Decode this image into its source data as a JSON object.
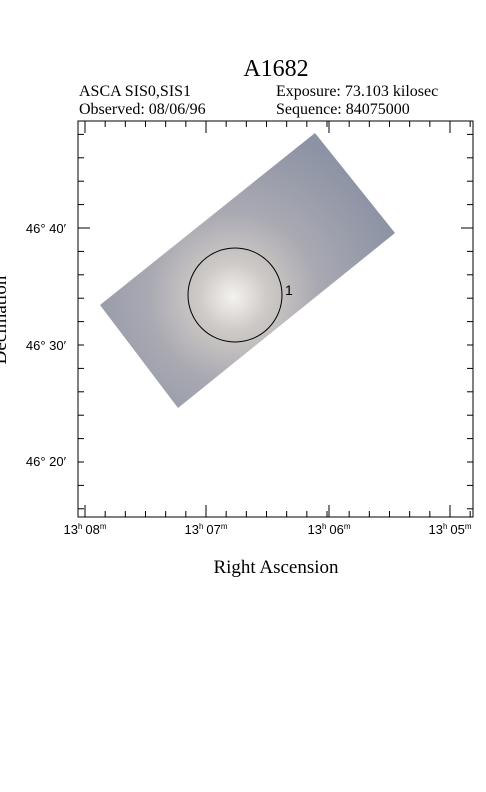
{
  "header": {
    "title": "A1682",
    "instrument": "ASCA SIS0,SIS1",
    "observed": "Observed: 08/06/96",
    "exposure": "Exposure: 73.103 kilosec",
    "sequence": "Sequence: 84075000"
  },
  "axes": {
    "x_label": "Right Ascension",
    "y_label": "Declination",
    "dec_ticks": [
      "46° 40′",
      "46° 30′",
      "46° 20′"
    ],
    "ra_ticks": [
      {
        "hours": "13",
        "hour_unit": "h",
        "minutes": "08",
        "minute_unit": "m"
      },
      {
        "hours": "13",
        "hour_unit": "h",
        "minutes": "07",
        "minute_unit": "m"
      },
      {
        "hours": "13",
        "hour_unit": "h",
        "minutes": "06",
        "minute_unit": "m"
      },
      {
        "hours": "13",
        "hour_unit": "h",
        "minutes": "05",
        "minute_unit": "m"
      }
    ]
  },
  "regions": [
    {
      "label": "1"
    }
  ]
}
